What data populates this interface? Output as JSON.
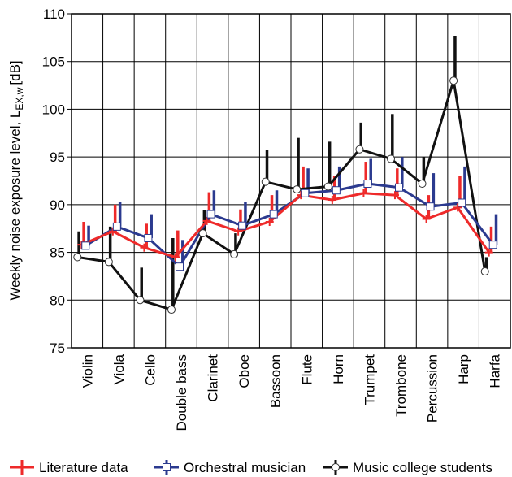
{
  "chart_data": {
    "type": "line",
    "y_label": "Weekly noise exposure level, L",
    "y_label_sub": "EX,w",
    "y_label_unit": "[dB]",
    "categories": [
      "Violin",
      "Viola",
      "Cello",
      "Double bass",
      "Clarinet",
      "Oboe",
      "Bassoon",
      "Flute",
      "Horn",
      "Trumpet",
      "Trombone",
      "Percussion",
      "Harp",
      "Harfa"
    ],
    "series": [
      {
        "name": "Literature data",
        "color": "#ee2a2a",
        "marker": "plus",
        "values": [
          85.8,
          87.2,
          85.5,
          84.5,
          88.3,
          87.2,
          88.2,
          91,
          90.5,
          91.2,
          91,
          88.5,
          89.7,
          85
        ],
        "errors": [
          2.4,
          2.8,
          2.5,
          2.8,
          3,
          2.3,
          2.8,
          3,
          2.5,
          3.3,
          2.8,
          2.5,
          3.3,
          2.7
        ]
      },
      {
        "name": "Orchestral musician",
        "color": "#2b3a8f",
        "marker": "square",
        "values": [
          85.7,
          87.7,
          86.5,
          83.5,
          89,
          87.8,
          89,
          91.2,
          91.5,
          92.2,
          91.8,
          89.8,
          90.2,
          85.8
        ],
        "errors": [
          2.1,
          2.6,
          2.5,
          2.8,
          2.5,
          2.5,
          2.5,
          2.6,
          2.5,
          2.6,
          3.2,
          3.5,
          3.8,
          3.2
        ]
      },
      {
        "name": "Music college students",
        "color": "#111111",
        "marker": "circle",
        "values": [
          84.5,
          84,
          80,
          79,
          87,
          84.8,
          92.4,
          91.6,
          91.9,
          95.8,
          94.8,
          92.2,
          103,
          83
        ],
        "errors": [
          2.7,
          3.7,
          3.4,
          7.5,
          2.4,
          2.2,
          3.3,
          5.4,
          4.7,
          2.8,
          4.7,
          2.8,
          4.7,
          1.5
        ]
      }
    ],
    "ylim": [
      75,
      110
    ],
    "yticks": [
      75,
      80,
      85,
      90,
      95,
      100,
      105,
      110
    ],
    "grid": true,
    "legend": "bottom"
  }
}
